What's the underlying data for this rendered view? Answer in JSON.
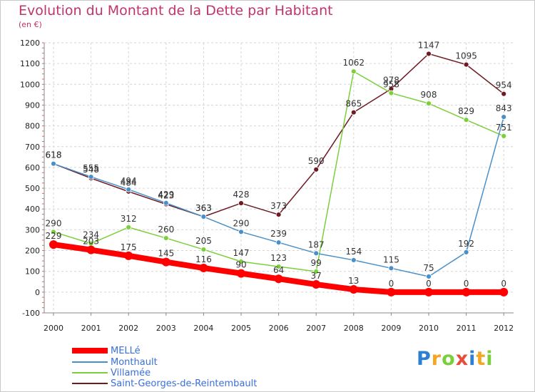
{
  "chart_data": {
    "type": "line",
    "title": "Evolution du Montant de la Dette par Habitant",
    "subtitle": "(en €)",
    "x": [
      "2000",
      "2001",
      "2002",
      "2003",
      "2004",
      "2005",
      "2006",
      "2007",
      "2008",
      "2009",
      "2010",
      "2011",
      "2012"
    ],
    "ylim": [
      -100,
      1200
    ],
    "yticks": [
      -100,
      0,
      100,
      200,
      300,
      400,
      500,
      600,
      700,
      800,
      900,
      1000,
      1100,
      1200
    ],
    "grid": true,
    "legend_position": "bottom-left",
    "series": [
      {
        "name": "MELLé",
        "color": "#ff0000",
        "values": [
          229,
          203,
          175,
          145,
          116,
          90,
          64,
          37,
          13,
          0,
          0,
          0,
          0
        ]
      },
      {
        "name": "Monthault",
        "color": "#4a90c8",
        "values": [
          618,
          555,
          494,
          429,
          363,
          290,
          239,
          187,
          154,
          115,
          75,
          192,
          843
        ]
      },
      {
        "name": "Villamée",
        "color": "#7ccf3c",
        "values": [
          290,
          234,
          312,
          260,
          205,
          147,
          123,
          99,
          1062,
          958,
          908,
          829,
          751
        ]
      },
      {
        "name": "Saint-Georges-de-Reintembault",
        "color": "#6e1b22",
        "values": [
          618,
          548,
          484,
          423,
          363,
          428,
          373,
          590,
          865,
          978,
          1147,
          1095,
          954
        ]
      }
    ]
  },
  "logo": {
    "text": "Proxiti",
    "colors": [
      "#2d7fd1",
      "#f5a623",
      "#7ccf3c",
      "#e84c3d",
      "#2d7fd1",
      "#f5a623",
      "#7ccf3c"
    ]
  }
}
